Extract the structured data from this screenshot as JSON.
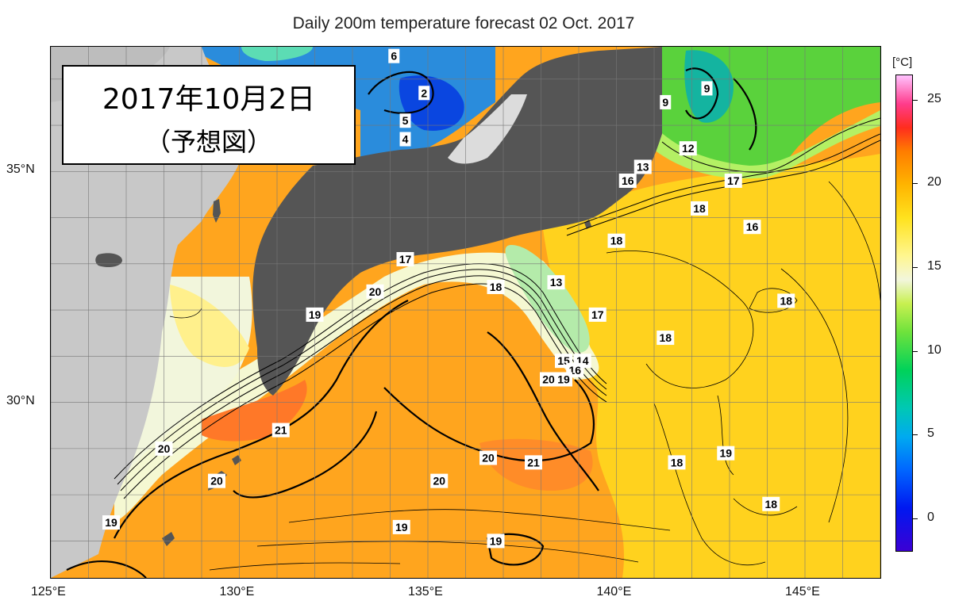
{
  "title": "Daily 200m temperature forecast 02 Oct. 2017",
  "inset": {
    "line1": "2017年10月2日",
    "line2": "（予想図）"
  },
  "map": {
    "lon_range": [
      125,
      147
    ],
    "lat_range": [
      26.2,
      37.7
    ],
    "x_ticks": [
      {
        "lon": 125,
        "label": "125°E"
      },
      {
        "lon": 130,
        "label": "130°E"
      },
      {
        "lon": 135,
        "label": "135°E"
      },
      {
        "lon": 140,
        "label": "140°E"
      },
      {
        "lon": 145,
        "label": "145°E"
      }
    ],
    "y_ticks": [
      {
        "lat": 35,
        "label": "35°N"
      },
      {
        "lat": 30,
        "label": "30°N"
      }
    ],
    "grid": true,
    "grid_step_deg": 1
  },
  "colorbar": {
    "unit": "[°C]",
    "min": -2,
    "max": 26.5,
    "ticks": [
      {
        "value": 25,
        "label": "25"
      },
      {
        "value": 20,
        "label": "20"
      },
      {
        "value": 15,
        "label": "15"
      },
      {
        "value": 10,
        "label": "10"
      },
      {
        "value": 5,
        "label": "5"
      },
      {
        "value": 0,
        "label": "0"
      }
    ]
  },
  "contour_labels": [
    {
      "text": "6",
      "lon": 134.1,
      "lat": 37.5
    },
    {
      "text": "2",
      "lon": 134.9,
      "lat": 36.7
    },
    {
      "text": "5",
      "lon": 134.4,
      "lat": 36.1
    },
    {
      "text": "4",
      "lon": 134.4,
      "lat": 35.7
    },
    {
      "text": "9",
      "lon": 142.4,
      "lat": 36.8
    },
    {
      "text": "9",
      "lon": 141.3,
      "lat": 36.5
    },
    {
      "text": "12",
      "lon": 141.9,
      "lat": 35.5
    },
    {
      "text": "13",
      "lon": 140.7,
      "lat": 35.1
    },
    {
      "text": "16",
      "lon": 140.3,
      "lat": 34.8
    },
    {
      "text": "17",
      "lon": 143.1,
      "lat": 34.8
    },
    {
      "text": "18",
      "lon": 142.2,
      "lat": 34.2
    },
    {
      "text": "16",
      "lon": 143.6,
      "lat": 33.8
    },
    {
      "text": "18",
      "lon": 140.0,
      "lat": 33.5
    },
    {
      "text": "17",
      "lon": 134.4,
      "lat": 33.1
    },
    {
      "text": "13",
      "lon": 138.4,
      "lat": 32.6
    },
    {
      "text": "20",
      "lon": 133.6,
      "lat": 32.4
    },
    {
      "text": "18",
      "lon": 136.8,
      "lat": 32.5
    },
    {
      "text": "19",
      "lon": 132.0,
      "lat": 31.9
    },
    {
      "text": "17",
      "lon": 139.5,
      "lat": 31.9
    },
    {
      "text": "18",
      "lon": 144.5,
      "lat": 32.2
    },
    {
      "text": "18",
      "lon": 141.3,
      "lat": 31.4
    },
    {
      "text": "15",
      "lon": 138.6,
      "lat": 30.9
    },
    {
      "text": "14",
      "lon": 139.1,
      "lat": 30.9
    },
    {
      "text": "16",
      "lon": 138.9,
      "lat": 30.7
    },
    {
      "text": "20",
      "lon": 138.2,
      "lat": 30.5
    },
    {
      "text": "19",
      "lon": 138.6,
      "lat": 30.5
    },
    {
      "text": "21",
      "lon": 131.1,
      "lat": 29.4
    },
    {
      "text": "20",
      "lon": 128.0,
      "lat": 29.0
    },
    {
      "text": "20",
      "lon": 136.6,
      "lat": 28.8
    },
    {
      "text": "21",
      "lon": 137.8,
      "lat": 28.7
    },
    {
      "text": "19",
      "lon": 142.9,
      "lat": 28.9
    },
    {
      "text": "18",
      "lon": 141.6,
      "lat": 28.7
    },
    {
      "text": "20",
      "lon": 129.4,
      "lat": 28.3
    },
    {
      "text": "20",
      "lon": 135.3,
      "lat": 28.3
    },
    {
      "text": "18",
      "lon": 144.1,
      "lat": 27.8
    },
    {
      "text": "19",
      "lon": 126.6,
      "lat": 27.4
    },
    {
      "text": "19",
      "lon": 134.3,
      "lat": 27.3
    },
    {
      "text": "19",
      "lon": 136.8,
      "lat": 27.0
    }
  ]
}
